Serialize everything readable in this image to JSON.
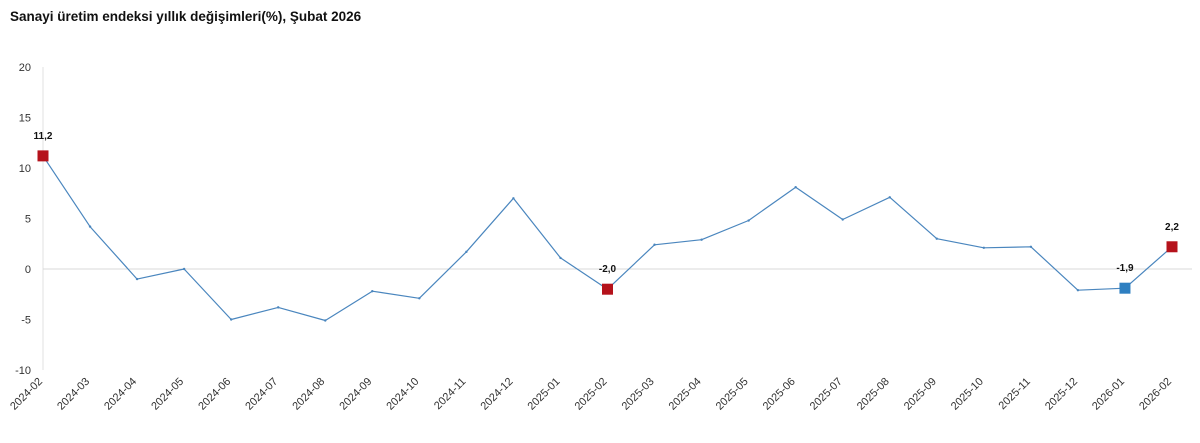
{
  "chart_data": {
    "type": "line",
    "title": "Sanayi üretim endeksi yıllık değişimleri(%), Şubat 2026",
    "xlabel": "",
    "ylabel": "",
    "ylim": [
      -10,
      20
    ],
    "yticks": [
      "20",
      "15",
      "10",
      "5",
      "0",
      "-5",
      "-10"
    ],
    "ytick_values": [
      20,
      15,
      10,
      5,
      0,
      -5,
      -10
    ],
    "grid": false,
    "categories": [
      "2024-02",
      "2024-03",
      "2024-04",
      "2024-05",
      "2024-06",
      "2024-07",
      "2024-08",
      "2024-09",
      "2024-10",
      "2024-11",
      "2024-12",
      "2025-01",
      "2025-02",
      "2025-03",
      "2025-04",
      "2025-05",
      "2025-06",
      "2025-07",
      "2025-08",
      "2025-09",
      "2025-10",
      "2025-11",
      "2025-12",
      "2026-01",
      "2026-02"
    ],
    "series": [
      {
        "values": [
          11.2,
          4.2,
          -1.0,
          0.0,
          -5.0,
          -3.8,
          -5.1,
          -2.2,
          -2.9,
          1.7,
          7.0,
          1.1,
          -2.0,
          2.4,
          2.9,
          4.8,
          8.1,
          4.9,
          7.1,
          3.0,
          2.1,
          2.2,
          -2.1,
          -1.9,
          2.2
        ],
        "color": "#4a86be"
      }
    ],
    "highlighted_points": [
      {
        "category": "2024-02",
        "value": 11.2,
        "label": "11,2",
        "color": "#b5121b"
      },
      {
        "category": "2025-02",
        "value": -2.0,
        "label": "-2,0",
        "color": "#b5121b"
      },
      {
        "category": "2026-01",
        "value": -1.9,
        "label": "-1,9",
        "color": "#2e7fc1"
      },
      {
        "category": "2026-02",
        "value": 2.2,
        "label": "2,2",
        "color": "#b5121b"
      }
    ],
    "colors": {
      "line": "#4a86be",
      "axis": "#d9d9d9",
      "highlight_red": "#b5121b",
      "highlight_blue": "#2e7fc1"
    }
  }
}
